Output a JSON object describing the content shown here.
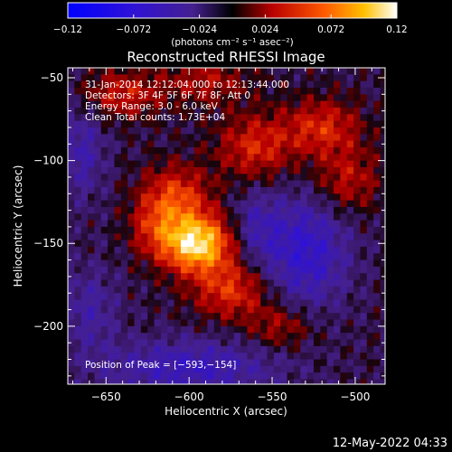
{
  "colorbar": {
    "ticks": [
      "-0.12",
      "-0.072",
      "-0.024",
      "0.024",
      "0.072",
      "0.12"
    ],
    "unit_label": "(photons cm⁻² s⁻¹ asec⁻²)",
    "range": [
      -0.12,
      0.12
    ]
  },
  "chart_data": {
    "type": "heatmap",
    "title": "Reconstructed RHESSI Image",
    "xlabel": "Heliocentric X (arcsec)",
    "ylabel": "Heliocentric Y (arcsec)",
    "xlim": [
      -673,
      -482
    ],
    "ylim": [
      -235,
      -44
    ],
    "x_ticks": [
      -650,
      -600,
      -550,
      -500
    ],
    "y_ticks": [
      -50,
      -100,
      -150,
      -200
    ],
    "x_tick_labels": [
      "−650",
      "−600",
      "−550",
      "−500"
    ],
    "y_tick_labels": [
      "−50",
      "−100",
      "−150",
      "−200"
    ],
    "annotations": [
      "31-Jan-2014 12:12:04.000 to 12:13:44.000",
      "Detectors: 3F 4F 5F 6F 7F 8F, Att 0",
      "Energy Range: 3.0 - 6.0 keV",
      "Clean     Total counts: 1.73E+04"
    ],
    "peak_label": "Position of Peak = [−593,−154]",
    "peak": [
      -593,
      -154
    ],
    "blobs": [
      {
        "x": -596,
        "y": -150,
        "sx": 15,
        "sy": 12,
        "a": 0.12
      },
      {
        "x": -608,
        "y": -122,
        "sx": 14,
        "sy": 13,
        "a": 0.06
      },
      {
        "x": -575,
        "y": -178,
        "sx": 16,
        "sy": 12,
        "a": 0.055
      },
      {
        "x": -622,
        "y": -140,
        "sx": 10,
        "sy": 12,
        "a": 0.035
      },
      {
        "x": -560,
        "y": -92,
        "sx": 16,
        "sy": 14,
        "a": 0.05
      },
      {
        "x": -520,
        "y": -80,
        "sx": 16,
        "sy": 12,
        "a": 0.05
      },
      {
        "x": -505,
        "y": -112,
        "sx": 14,
        "sy": 14,
        "a": 0.04
      },
      {
        "x": -640,
        "y": -60,
        "sx": 16,
        "sy": 10,
        "a": 0.045
      },
      {
        "x": -590,
        "y": -52,
        "sx": 18,
        "sy": 10,
        "a": 0.035
      },
      {
        "x": -545,
        "y": -200,
        "sx": 14,
        "sy": 10,
        "a": 0.035
      },
      {
        "x": -530,
        "y": -155,
        "sx": 18,
        "sy": 24,
        "a": -0.055
      },
      {
        "x": -560,
        "y": -140,
        "sx": 10,
        "sy": 16,
        "a": -0.03
      },
      {
        "x": -600,
        "y": -225,
        "sx": 38,
        "sy": 12,
        "a": -0.045
      },
      {
        "x": -665,
        "y": -95,
        "sx": 10,
        "sy": 20,
        "a": -0.035
      },
      {
        "x": -660,
        "y": -190,
        "sx": 12,
        "sy": 18,
        "a": -0.03
      }
    ]
  },
  "footer": {
    "timestamp": "12-May-2022 04:33"
  }
}
